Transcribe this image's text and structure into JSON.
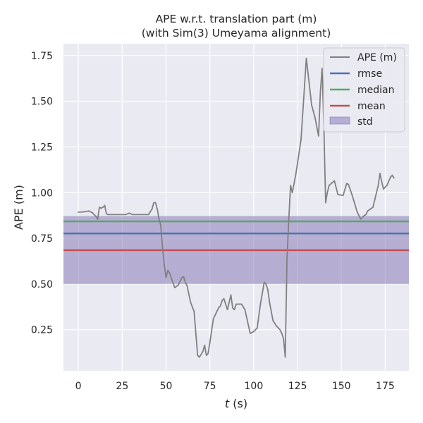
{
  "chart_data": {
    "type": "line",
    "title": [
      "APE w.r.t. translation part (m)",
      "(with Sim(3) Umeyama alignment)"
    ],
    "xlabel_var": "t",
    "xlabel_unit": " (s)",
    "ylabel": "APE (m)",
    "xlim": [
      -8.5,
      188.5
    ],
    "ylim": [
      0.025,
      1.815
    ],
    "xticks": [
      0,
      25,
      50,
      75,
      100,
      125,
      150,
      175
    ],
    "yticks": [
      0.25,
      0.5,
      0.75,
      1.0,
      1.25,
      1.5,
      1.75
    ],
    "ytick_labels": [
      "0.25",
      "0.50",
      "0.75",
      "1.00",
      "1.25",
      "1.50",
      "1.75"
    ],
    "grid": true,
    "legend_position": "top-right",
    "colors": {
      "background": "#eaeaf2",
      "grid": "#ffffff",
      "ape": "#808080",
      "rmse": "#4c72b0",
      "median": "#55a868",
      "mean": "#c44e52",
      "std_fill": "#8172b2"
    },
    "stats": {
      "rmse": 0.777,
      "median": 0.843,
      "mean": 0.685,
      "std_low": 0.5,
      "std_high": 0.872
    },
    "legend": [
      {
        "key": "ape",
        "label": "APE (m)",
        "kind": "line"
      },
      {
        "key": "rmse",
        "label": "rmse",
        "kind": "line"
      },
      {
        "key": "median",
        "label": "median",
        "kind": "line"
      },
      {
        "key": "mean",
        "label": "mean",
        "kind": "line"
      },
      {
        "key": "std_fill",
        "label": "std",
        "kind": "patch"
      }
    ],
    "series": [
      {
        "name": "APE (m)",
        "x": [
          0,
          3,
          6,
          8,
          10,
          11,
          12,
          13,
          14,
          15,
          16,
          17,
          20,
          25,
          27,
          29,
          31,
          35,
          40,
          42,
          43,
          44,
          45,
          46,
          47,
          48,
          49,
          50,
          51,
          52,
          55,
          57,
          59,
          60,
          61,
          62,
          64,
          66,
          68,
          69,
          71,
          72,
          73,
          74,
          75,
          77,
          79,
          80,
          81,
          82,
          83,
          85,
          86,
          87,
          88,
          89,
          90,
          93,
          95,
          98,
          100,
          102,
          104,
          106,
          107,
          108,
          109,
          111,
          113,
          114,
          115,
          116,
          117,
          118,
          119,
          120,
          121,
          122,
          124,
          127,
          130,
          133,
          135,
          137,
          138,
          139,
          140,
          141,
          142,
          143,
          146,
          148,
          151,
          153,
          154,
          156,
          159,
          161,
          163,
          164,
          165,
          168,
          171,
          172,
          173,
          174,
          175,
          176,
          178,
          179,
          180
        ],
        "values": [
          0.893,
          0.895,
          0.9,
          0.89,
          0.87,
          0.855,
          0.92,
          0.915,
          0.92,
          0.93,
          0.885,
          0.88,
          0.88,
          0.88,
          0.88,
          0.888,
          0.88,
          0.88,
          0.88,
          0.91,
          0.945,
          0.945,
          0.91,
          0.855,
          0.82,
          0.7,
          0.605,
          0.535,
          0.575,
          0.56,
          0.48,
          0.495,
          0.535,
          0.54,
          0.51,
          0.49,
          0.4,
          0.35,
          0.11,
          0.1,
          0.13,
          0.165,
          0.11,
          0.12,
          0.18,
          0.31,
          0.35,
          0.37,
          0.38,
          0.41,
          0.42,
          0.36,
          0.4,
          0.44,
          0.37,
          0.36,
          0.39,
          0.39,
          0.36,
          0.23,
          0.24,
          0.26,
          0.4,
          0.51,
          0.5,
          0.47,
          0.4,
          0.3,
          0.27,
          0.26,
          0.25,
          0.23,
          0.2,
          0.1,
          0.64,
          0.85,
          1.04,
          1.0,
          1.1,
          1.29,
          1.735,
          1.48,
          1.41,
          1.31,
          1.55,
          1.68,
          1.36,
          0.945,
          1.0,
          1.04,
          1.065,
          0.99,
          0.985,
          1.05,
          1.045,
          0.99,
          0.895,
          0.855,
          0.875,
          0.88,
          0.9,
          0.92,
          1.04,
          1.105,
          1.06,
          1.02,
          1.03,
          1.04,
          1.085,
          1.095,
          1.08
        ]
      }
    ]
  }
}
